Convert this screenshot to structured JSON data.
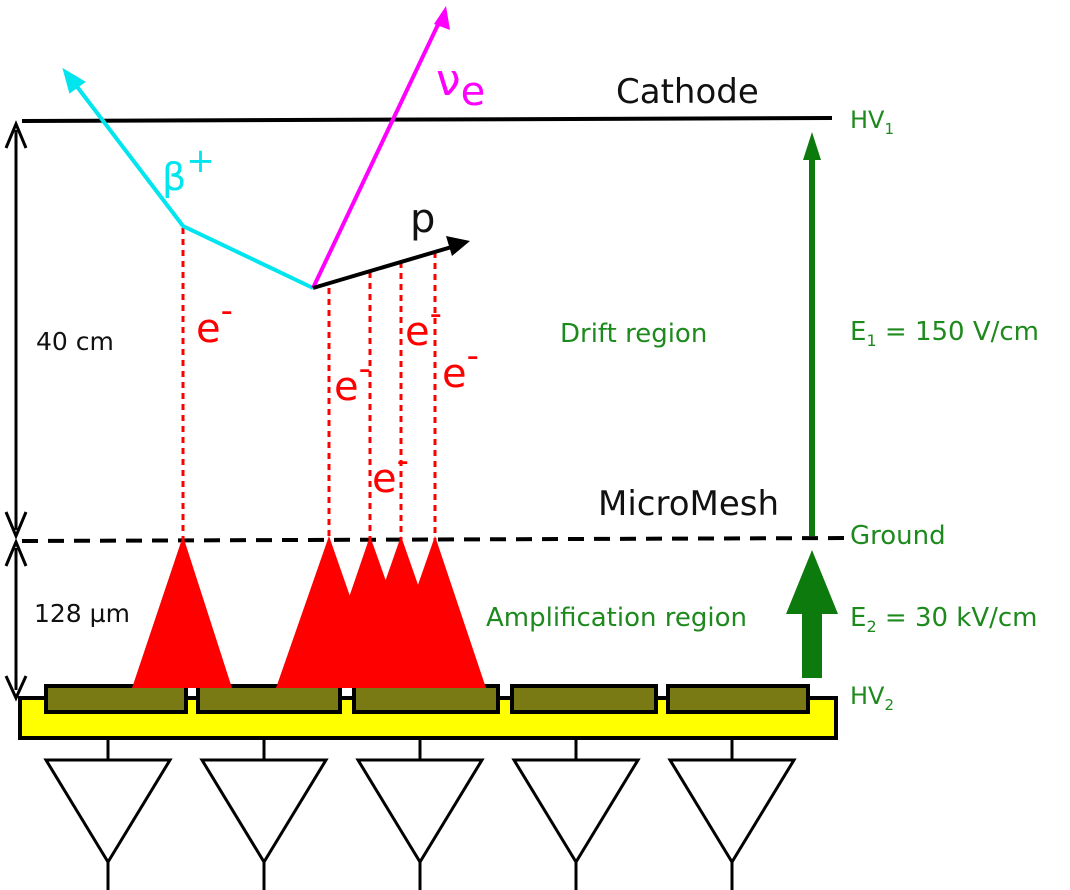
{
  "labels": {
    "cathode": "Cathode",
    "micromesh": "MicroMesh",
    "drift_region": "Drift region",
    "amplification_region": "Amplification region",
    "hv1_base": "HV",
    "hv1_sub": "1",
    "ground": "Ground",
    "hv2_base": "HV",
    "hv2_sub": "2",
    "e1_base": "E",
    "e1_sub": "1",
    "e1_value": " = 150 V/cm",
    "e2_base": "E",
    "e2_sub": "2",
    "e2_value": " = 30 kV/cm",
    "drift_height": "40 cm",
    "amp_height": "128 µm",
    "beta_base": "β",
    "beta_sup": "+",
    "nu_base": "ν",
    "nu_sub": "e",
    "proton": "p",
    "electron_base": "e",
    "electron_sup": "-"
  },
  "colors": {
    "beta": "#00e5ee",
    "neutrino": "#ff00ff",
    "electron": "#ff0000",
    "field": "#0d7a0d",
    "pcb": "#ffff00",
    "pad": "#7a7a14"
  },
  "pads_count": 5
}
